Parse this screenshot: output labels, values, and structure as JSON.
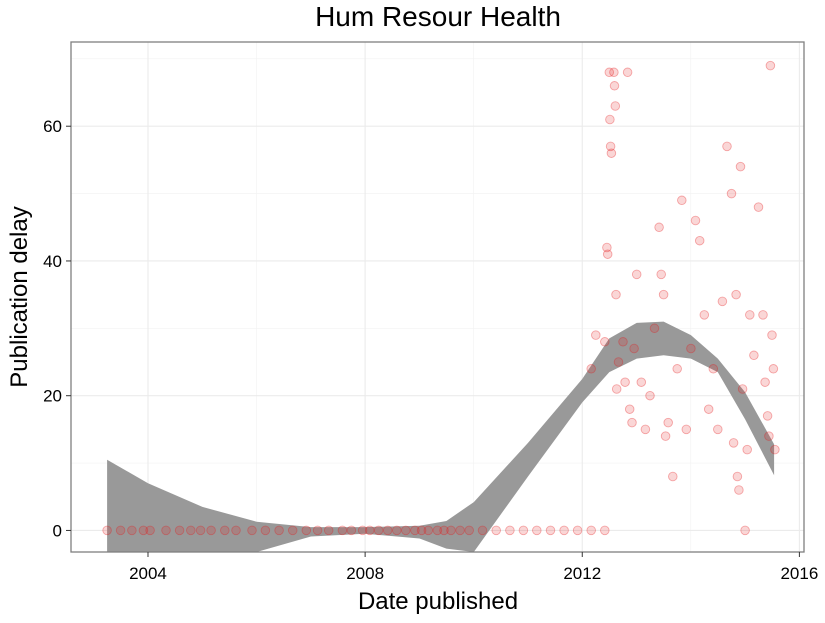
{
  "chart_data": {
    "type": "scatter",
    "title": "Hum Resour Health",
    "xlabel": "Date published",
    "ylabel": "Publication delay",
    "xlim": [
      "2002-08-01",
      "2016-02-01"
    ],
    "ylim": [
      -3.2,
      72.5
    ],
    "x_ticks": [
      "2004",
      "2008",
      "2012",
      "2016"
    ],
    "x_tick_values": [
      "2004-01-01",
      "2008-01-01",
      "2012-01-01",
      "2016-01-01"
    ],
    "y_ticks": [
      "0",
      "20",
      "40",
      "60"
    ],
    "y_tick_values": [
      0,
      20,
      40,
      60
    ],
    "grid": true,
    "point_color": "#e41a1c",
    "band_color": "#999999",
    "frame_color": "#7f7f7f",
    "points": [
      {
        "x": "2003-04-01",
        "y": 0
      },
      {
        "x": "2003-07-01",
        "y": 0
      },
      {
        "x": "2003-09-15",
        "y": 0
      },
      {
        "x": "2003-12-01",
        "y": 0
      },
      {
        "x": "2004-01-15",
        "y": 0
      },
      {
        "x": "2004-05-01",
        "y": 0
      },
      {
        "x": "2004-08-01",
        "y": 0
      },
      {
        "x": "2004-10-15",
        "y": 0
      },
      {
        "x": "2004-12-20",
        "y": 0
      },
      {
        "x": "2005-03-01",
        "y": 0
      },
      {
        "x": "2005-06-01",
        "y": 0
      },
      {
        "x": "2005-08-15",
        "y": 0
      },
      {
        "x": "2005-12-01",
        "y": 0
      },
      {
        "x": "2006-03-01",
        "y": 0
      },
      {
        "x": "2006-06-01",
        "y": 0
      },
      {
        "x": "2006-09-01",
        "y": 0
      },
      {
        "x": "2006-12-01",
        "y": 0
      },
      {
        "x": "2007-02-15",
        "y": 0
      },
      {
        "x": "2007-05-01",
        "y": 0
      },
      {
        "x": "2007-08-01",
        "y": 0
      },
      {
        "x": "2007-10-01",
        "y": 0
      },
      {
        "x": "2007-12-15",
        "y": 0
      },
      {
        "x": "2008-02-01",
        "y": 0
      },
      {
        "x": "2008-04-01",
        "y": 0
      },
      {
        "x": "2008-06-01",
        "y": 0
      },
      {
        "x": "2008-08-01",
        "y": 0
      },
      {
        "x": "2008-10-01",
        "y": 0
      },
      {
        "x": "2008-12-01",
        "y": 0
      },
      {
        "x": "2009-01-15",
        "y": 0
      },
      {
        "x": "2009-03-01",
        "y": 0
      },
      {
        "x": "2009-05-01",
        "y": 0
      },
      {
        "x": "2009-06-15",
        "y": 0
      },
      {
        "x": "2009-08-01",
        "y": 0
      },
      {
        "x": "2009-10-01",
        "y": 0
      },
      {
        "x": "2009-12-01",
        "y": 0
      },
      {
        "x": "2010-03-01",
        "y": 0
      },
      {
        "x": "2010-06-01",
        "y": 0
      },
      {
        "x": "2010-09-01",
        "y": 0
      },
      {
        "x": "2010-12-01",
        "y": 0
      },
      {
        "x": "2011-03-01",
        "y": 0
      },
      {
        "x": "2011-06-01",
        "y": 0
      },
      {
        "x": "2011-09-01",
        "y": 0
      },
      {
        "x": "2011-12-01",
        "y": 0
      },
      {
        "x": "2012-03-01",
        "y": 0
      },
      {
        "x": "2012-06-01",
        "y": 0
      },
      {
        "x": "2012-03-01",
        "y": 24
      },
      {
        "x": "2012-04-01",
        "y": 29
      },
      {
        "x": "2012-06-01",
        "y": 28
      },
      {
        "x": "2012-06-15",
        "y": 42
      },
      {
        "x": "2012-06-20",
        "y": 41
      },
      {
        "x": "2012-07-01",
        "y": 68
      },
      {
        "x": "2012-07-05",
        "y": 61
      },
      {
        "x": "2012-07-10",
        "y": 57
      },
      {
        "x": "2012-07-15",
        "y": 56
      },
      {
        "x": "2012-08-01",
        "y": 68
      },
      {
        "x": "2012-08-05",
        "y": 66
      },
      {
        "x": "2012-08-10",
        "y": 63
      },
      {
        "x": "2012-08-15",
        "y": 35
      },
      {
        "x": "2012-08-20",
        "y": 21
      },
      {
        "x": "2012-09-01",
        "y": 25
      },
      {
        "x": "2012-10-01",
        "y": 28
      },
      {
        "x": "2012-10-15",
        "y": 22
      },
      {
        "x": "2012-11-01",
        "y": 68
      },
      {
        "x": "2012-11-15",
        "y": 18
      },
      {
        "x": "2012-12-01",
        "y": 16
      },
      {
        "x": "2012-12-15",
        "y": 27
      },
      {
        "x": "2013-01-01",
        "y": 38
      },
      {
        "x": "2013-02-01",
        "y": 22
      },
      {
        "x": "2013-03-01",
        "y": 15
      },
      {
        "x": "2013-04-01",
        "y": 20
      },
      {
        "x": "2013-05-01",
        "y": 30
      },
      {
        "x": "2013-06-01",
        "y": 45
      },
      {
        "x": "2013-06-15",
        "y": 38
      },
      {
        "x": "2013-07-01",
        "y": 35
      },
      {
        "x": "2013-07-15",
        "y": 14
      },
      {
        "x": "2013-08-01",
        "y": 16
      },
      {
        "x": "2013-09-01",
        "y": 8
      },
      {
        "x": "2013-10-01",
        "y": 24
      },
      {
        "x": "2013-11-01",
        "y": 49
      },
      {
        "x": "2013-12-01",
        "y": 15
      },
      {
        "x": "2014-01-01",
        "y": 27
      },
      {
        "x": "2014-02-01",
        "y": 46
      },
      {
        "x": "2014-03-01",
        "y": 43
      },
      {
        "x": "2014-04-01",
        "y": 32
      },
      {
        "x": "2014-05-01",
        "y": 18
      },
      {
        "x": "2014-06-01",
        "y": 24
      },
      {
        "x": "2014-07-01",
        "y": 15
      },
      {
        "x": "2014-08-01",
        "y": 34
      },
      {
        "x": "2014-09-01",
        "y": 57
      },
      {
        "x": "2014-10-01",
        "y": 50
      },
      {
        "x": "2014-10-15",
        "y": 13
      },
      {
        "x": "2014-11-01",
        "y": 35
      },
      {
        "x": "2014-11-10",
        "y": 8
      },
      {
        "x": "2014-11-20",
        "y": 6
      },
      {
        "x": "2014-12-01",
        "y": 54
      },
      {
        "x": "2014-12-15",
        "y": 21
      },
      {
        "x": "2015-01-01",
        "y": 0
      },
      {
        "x": "2015-01-15",
        "y": 12
      },
      {
        "x": "2015-02-01",
        "y": 32
      },
      {
        "x": "2015-03-01",
        "y": 26
      },
      {
        "x": "2015-04-01",
        "y": 48
      },
      {
        "x": "2015-05-01",
        "y": 32
      },
      {
        "x": "2015-05-15",
        "y": 22
      },
      {
        "x": "2015-06-01",
        "y": 17
      },
      {
        "x": "2015-06-10",
        "y": 14
      },
      {
        "x": "2015-06-20",
        "y": 69
      },
      {
        "x": "2015-07-01",
        "y": 29
      },
      {
        "x": "2015-07-10",
        "y": 24
      },
      {
        "x": "2015-07-20",
        "y": 12
      }
    ],
    "smooth": [
      {
        "x": "2003-04-01",
        "low": -3.2,
        "high": 10.5
      },
      {
        "x": "2004-01-01",
        "low": -3.2,
        "high": 7.0
      },
      {
        "x": "2005-01-01",
        "low": -3.2,
        "high": 3.5
      },
      {
        "x": "2006-01-01",
        "low": -3.2,
        "high": 1.3
      },
      {
        "x": "2007-01-01",
        "low": -0.9,
        "high": 0.5
      },
      {
        "x": "2008-01-01",
        "low": -0.5,
        "high": 0.5
      },
      {
        "x": "2009-01-01",
        "low": -1.2,
        "high": 0.7
      },
      {
        "x": "2009-07-01",
        "low": -2.7,
        "high": 1.4
      },
      {
        "x": "2010-01-01",
        "low": -3.2,
        "high": 4.2
      },
      {
        "x": "2011-01-01",
        "low": 8.0,
        "high": 13.0
      },
      {
        "x": "2012-01-01",
        "low": 19.0,
        "high": 22.5
      },
      {
        "x": "2012-07-01",
        "low": 23.5,
        "high": 28.5
      },
      {
        "x": "2013-01-01",
        "low": 25.5,
        "high": 30.8
      },
      {
        "x": "2013-07-01",
        "low": 26.0,
        "high": 31.0
      },
      {
        "x": "2014-01-01",
        "low": 25.5,
        "high": 29.0
      },
      {
        "x": "2014-07-01",
        "low": 23.5,
        "high": 25.5
      },
      {
        "x": "2015-01-01",
        "low": 16.5,
        "high": 20.5
      },
      {
        "x": "2015-07-15",
        "low": 8.2,
        "high": 12.8
      }
    ]
  }
}
